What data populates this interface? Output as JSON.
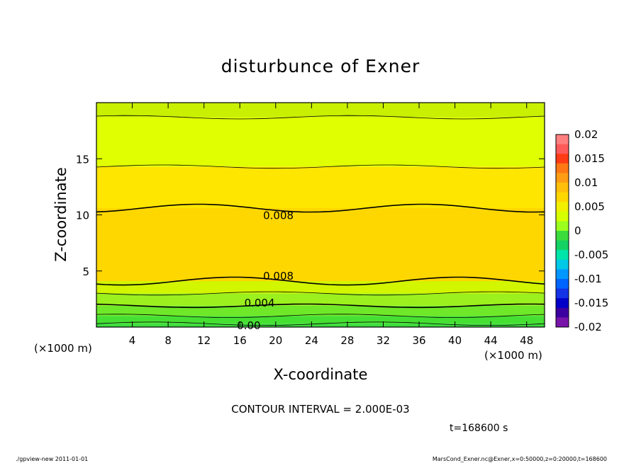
{
  "chart_data": {
    "type": "contour",
    "title": "disturbunce of Exner",
    "xlabel": "X-coordinate",
    "ylabel": "Z-coordinate",
    "x_unit": "(×1000 m)",
    "x_unit_right": "(×1000 m)",
    "xlim": [
      0,
      50
    ],
    "ylim": [
      0,
      20
    ],
    "x_ticks": [
      "4",
      "8",
      "12",
      "16",
      "20",
      "24",
      "28",
      "32",
      "36",
      "40",
      "44",
      "48"
    ],
    "y_ticks": [
      "5",
      "10",
      "15"
    ],
    "contour_interval_text": "CONTOUR INTERVAL = 2.000E-03",
    "time_text": "t=168600 s",
    "contour_labels": [
      {
        "text": "0.008",
        "x": 20.3,
        "z": 10.0
      },
      {
        "text": "0.008",
        "x": 20.3,
        "z": 4.6
      },
      {
        "text": "0.004",
        "x": 18.2,
        "z": 2.2
      },
      {
        "text": "0.00",
        "x": 17.0,
        "z": 0.2
      }
    ],
    "colorbar": {
      "levels": [
        "0.02",
        "0.015",
        "0.01",
        "0.005",
        "0",
        "-0.005",
        "-0.01",
        "-0.015",
        "-0.02"
      ],
      "colors": [
        "#ff7f7f",
        "#ff5a5a",
        "#ff3c14",
        "#ff7814",
        "#ff9d14",
        "#ffbf0a",
        "#ffd700",
        "#f2f000",
        "#d6ff00",
        "#9bff1e",
        "#3cdc3c",
        "#14d264",
        "#00e6aa",
        "#00c8e6",
        "#0096ff",
        "#0064ff",
        "#1432e6",
        "#0000c8",
        "#3c00a0",
        "#7814aa"
      ]
    },
    "bands": [
      {
        "from": 0.0,
        "to": 0.3,
        "value": -0.001,
        "color": "#3cdc3c"
      },
      {
        "from": 0.3,
        "to": 1.0,
        "value": 0.0,
        "color": "#46e032"
      },
      {
        "from": 1.0,
        "to": 1.9,
        "value": 0.001,
        "color": "#6ee828"
      },
      {
        "from": 1.9,
        "to": 3.0,
        "value": 0.003,
        "color": "#9bf01e"
      },
      {
        "from": 3.0,
        "to": 4.1,
        "value": 0.005,
        "color": "#d2f500"
      },
      {
        "from": 4.1,
        "to": 10.6,
        "value": 0.008,
        "color": "#ffd700"
      },
      {
        "from": 10.6,
        "to": 14.3,
        "value": 0.007,
        "color": "#ffe600"
      },
      {
        "from": 14.3,
        "to": 18.7,
        "value": 0.005,
        "color": "#e0ff00"
      },
      {
        "from": 18.7,
        "to": 20.0,
        "value": 0.004,
        "color": "#c8f000"
      }
    ]
  },
  "footer": {
    "left": "./gpview-new   2011-01-01",
    "right": "MarsCond_Exner.nc@Exner,x=0:50000,z=0:20000,t=168600"
  }
}
